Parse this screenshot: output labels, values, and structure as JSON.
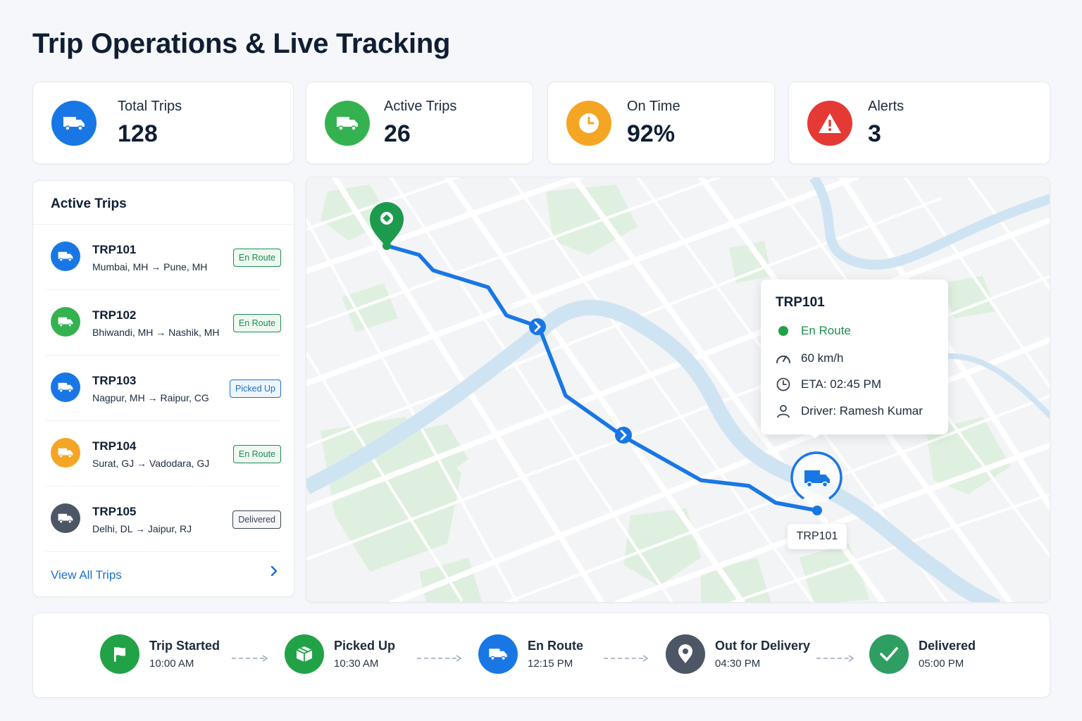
{
  "page": {
    "title": "Trip Operations & Live Tracking"
  },
  "stats": [
    {
      "label": "Total Trips",
      "value": "128",
      "icon": "truck-icon",
      "color": "#1877e5"
    },
    {
      "label": "Active Trips",
      "value": "26",
      "icon": "truck-icon",
      "color": "#34b24f"
    },
    {
      "label": "On Time",
      "value": "92%",
      "icon": "clock-icon",
      "color": "#f5a524"
    },
    {
      "label": "Alerts",
      "value": "3",
      "icon": "alert-triangle-icon",
      "color": "#e53935"
    }
  ],
  "active_trips": {
    "title": "Active Trips",
    "items": [
      {
        "id": "TRP101",
        "from": "Mumbai, MH",
        "to": "Pune, MH",
        "status": "En Route",
        "color": "#1877e5"
      },
      {
        "id": "TRP102",
        "from": "Bhiwandi, MH",
        "to": "Nashik, MH",
        "status": "En Route",
        "color": "#34b24f"
      },
      {
        "id": "TRP103",
        "from": "Nagpur, MH",
        "to": "Raipur, CG",
        "status": "Picked Up",
        "color": "#1877e5"
      },
      {
        "id": "TRP104",
        "from": "Surat, GJ",
        "to": "Vadodara, GJ",
        "status": "En Route",
        "color": "#f5a524"
      },
      {
        "id": "TRP105",
        "from": "Delhi, DL",
        "to": "Jaipur, RJ",
        "status": "Delivered",
        "color": "#4d5664"
      }
    ],
    "view_all": "View All Trips"
  },
  "map": {
    "popup": {
      "title": "TRP101",
      "status": "En Route",
      "speed": "60 km/h",
      "eta": "ETA: 02:45 PM",
      "driver": "Driver: Ramesh Kumar"
    },
    "vehicle_label": "TRP101",
    "route_color": "#1877e5"
  },
  "timeline": [
    {
      "label": "Trip Started",
      "time": "10:00 AM",
      "icon": "flag-icon",
      "color": "#21a246"
    },
    {
      "label": "Picked Up",
      "time": "10:30 AM",
      "icon": "package-icon",
      "color": "#21a246"
    },
    {
      "label": "En Route",
      "time": "12:15 PM",
      "icon": "truck-icon",
      "color": "#1877e5"
    },
    {
      "label": "Out for Delivery",
      "time": "04:30 PM",
      "icon": "location-pin-icon",
      "color": "#4d5664"
    },
    {
      "label": "Delivered",
      "time": "05:00 PM",
      "icon": "check-icon",
      "color": "#2e9e62"
    }
  ]
}
